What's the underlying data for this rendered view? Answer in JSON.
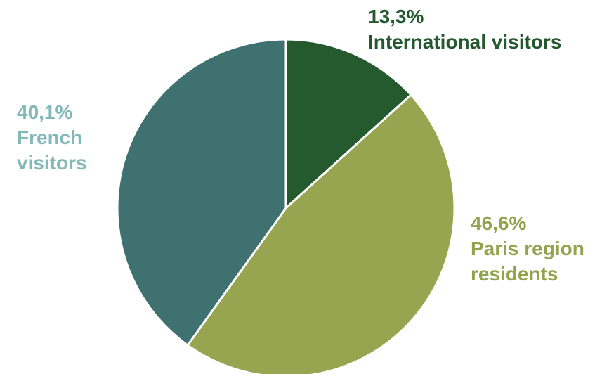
{
  "chart_data": {
    "type": "pie",
    "slices": [
      {
        "value": 13.3,
        "value_label": "13,3%",
        "label_lines": [
          "International visitors"
        ],
        "color": "#255a2f"
      },
      {
        "value": 46.6,
        "value_label": "46,6%",
        "label_lines": [
          "Paris region",
          "residents"
        ],
        "color": "#97a551"
      },
      {
        "value": 40.1,
        "value_label": "40,1%",
        "label_lines": [
          "French",
          "visitors"
        ],
        "color": "#3f7170"
      }
    ],
    "start": "12 o'clock",
    "direction": "clockwise",
    "legend": "none"
  }
}
